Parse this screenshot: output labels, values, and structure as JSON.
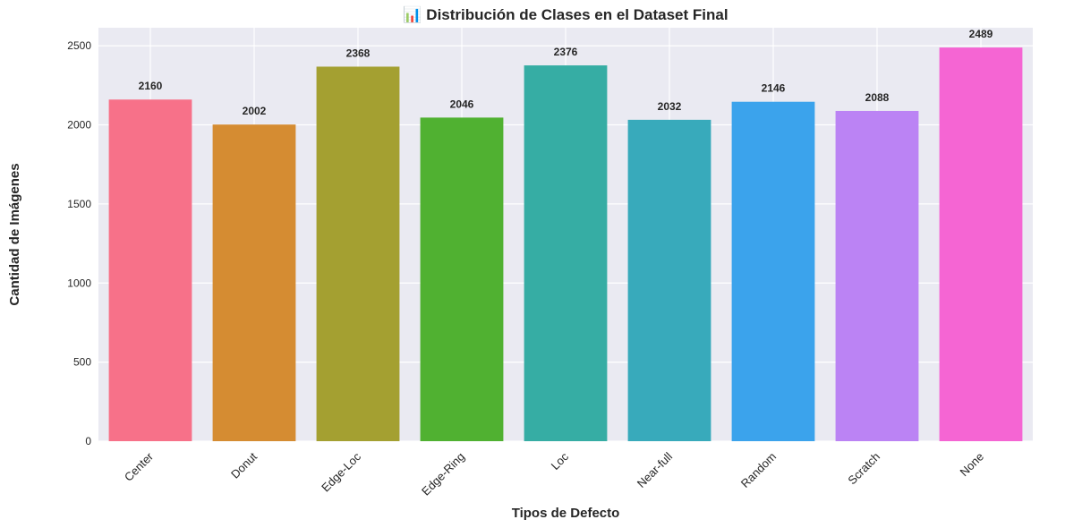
{
  "chart_data": {
    "type": "bar",
    "title": "📊 Distribución de Clases en el Dataset Final",
    "xlabel": "Tipos de Defecto",
    "ylabel": "Cantidad de Imágenes",
    "categories": [
      "Center",
      "Donut",
      "Edge-Loc",
      "Edge-Ring",
      "Loc",
      "Near-full",
      "Random",
      "Scratch",
      "None"
    ],
    "values": [
      2160,
      2002,
      2368,
      2046,
      2376,
      2032,
      2146,
      2088,
      2489
    ],
    "colors": [
      "#f77189",
      "#d58c32",
      "#a4a031",
      "#50b131",
      "#36ada4",
      "#38aabb",
      "#3ba3ec",
      "#bb83f4",
      "#f565d3"
    ],
    "ylim": [
      0,
      2614
    ],
    "yticks": [
      0,
      500,
      1000,
      1500,
      2000,
      2500
    ],
    "grid": true,
    "background": "#eaeaf2"
  }
}
